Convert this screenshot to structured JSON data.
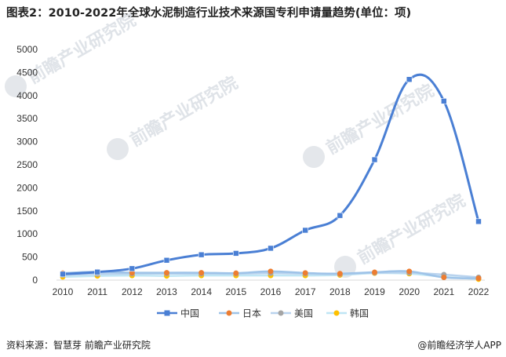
{
  "title": "图表2：2010-2022年全球水泥制造行业技术来源国专利申请量趋势(单位：项)",
  "source": "资料来源：智慧芽 前瞻产业研究院",
  "credit": "@前瞻经济学人APP",
  "watermark": "前瞻产业研究院",
  "chart_data": {
    "type": "line",
    "x": [
      "2010",
      "2011",
      "2012",
      "2013",
      "2014",
      "2015",
      "2016",
      "2017",
      "2018",
      "2019",
      "2020",
      "2021",
      "2022"
    ],
    "ylim": [
      0,
      5000
    ],
    "yticks": [
      0,
      500,
      1000,
      1500,
      2000,
      2500,
      3000,
      3500,
      4000,
      4500,
      5000
    ],
    "legend_position": "bottom",
    "series": [
      {
        "name": "中国",
        "color": "#4a7fd4",
        "marker": "square",
        "values": [
          130,
          175,
          250,
          430,
          550,
          580,
          690,
          1080,
          1400,
          2610,
          4350,
          3880,
          1270
        ]
      },
      {
        "name": "日本",
        "color": "#ed7d31",
        "marker": "circle",
        "values": [
          150,
          180,
          160,
          160,
          160,
          150,
          190,
          155,
          140,
          170,
          190,
          60,
          40
        ]
      },
      {
        "name": "美国",
        "color": "#a5a5a5",
        "marker": "circle",
        "values": [
          110,
          130,
          140,
          140,
          140,
          140,
          150,
          140,
          130,
          160,
          160,
          120,
          60
        ]
      },
      {
        "name": "韩国",
        "color": "#ffc000",
        "marker": "circle",
        "values": [
          70,
          90,
          100,
          90,
          100,
          100,
          100,
          100,
          110,
          150,
          140,
          70,
          20
        ]
      }
    ]
  }
}
